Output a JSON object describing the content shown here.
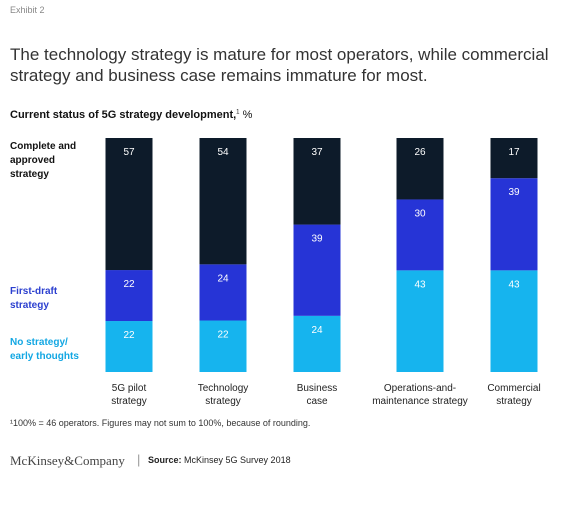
{
  "exhibit": "Exhibit 2",
  "headline": "The technology strategy is mature for most operators, while commercial strategy and business case remains immature for most.",
  "subtitle": {
    "text": "Current status of 5G strategy development,",
    "sup": "1",
    "unit": " %"
  },
  "legend": {
    "complete": [
      "Complete and",
      "approved",
      "strategy"
    ],
    "draft": [
      "First-draft",
      "strategy"
    ],
    "none": [
      "No strategy/",
      "early thoughts"
    ]
  },
  "footnote": "¹100% = 46 operators. Figures may not sum to 100%, because of rounding.",
  "brand": "McKinsey&Company",
  "source": {
    "label": "Source:",
    "text": "McKinsey 5G Survey 2018"
  },
  "colors": {
    "complete": "#0d1b2a",
    "draft": "#2634d6",
    "none": "#16b4ee",
    "label_light": "#ffffff"
  },
  "chart_data": {
    "type": "bar",
    "stacked": true,
    "categories": [
      [
        "5G pilot",
        "strategy"
      ],
      [
        "Technology",
        "strategy"
      ],
      [
        "Business",
        "case"
      ],
      [
        "Operations-and-",
        "maintenance strategy"
      ],
      [
        "Commercial",
        "strategy"
      ]
    ],
    "series": [
      {
        "name": "No strategy/early thoughts",
        "key": "none",
        "values": [
          22,
          22,
          24,
          43,
          43
        ]
      },
      {
        "name": "First-draft strategy",
        "key": "draft",
        "values": [
          22,
          24,
          39,
          30,
          39
        ]
      },
      {
        "name": "Complete and approved strategy",
        "key": "complete",
        "values": [
          57,
          54,
          37,
          26,
          17
        ]
      }
    ],
    "ylim": [
      0,
      100
    ]
  }
}
